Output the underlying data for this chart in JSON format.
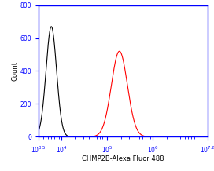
{
  "xlabel": "CHMP2B-Alexa Fluor 488",
  "ylabel": "Count",
  "xlim_log": [
    3.5,
    7.2
  ],
  "ylim": [
    0,
    800
  ],
  "yticks": [
    0,
    200,
    400,
    600,
    800
  ],
  "xtick_positions_log": [
    3.5,
    4.0,
    5.0,
    6.0,
    7.2
  ],
  "xtick_labels": [
    "10^3.5",
    "10^4",
    "10^5",
    "10^6",
    "10^7.2"
  ],
  "black_peak_log": 3.78,
  "black_peak_height": 670,
  "black_sigma_log": 0.115,
  "red_peak_log": 5.27,
  "red_peak_height": 520,
  "red_sigma_log": 0.175,
  "black_color": "#000000",
  "red_color": "#ff0000",
  "axis_color": "#0000ff",
  "background_color": "#ffffff",
  "spine_color": "#0000ff",
  "tick_label_fontsize": 5.5,
  "axis_label_fontsize": 6.0
}
